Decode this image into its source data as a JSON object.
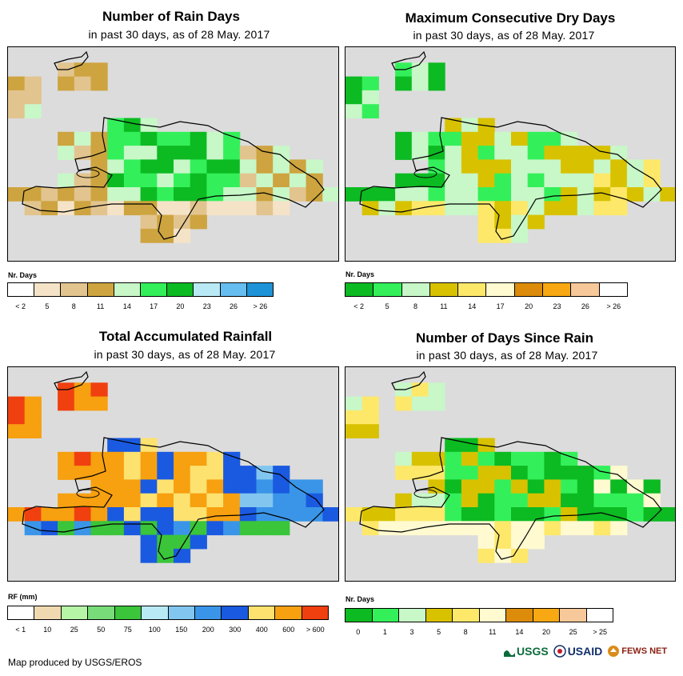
{
  "panels": [
    {
      "title": "Number of Rain Days",
      "subtitle": "in past 30 days, as of 28 May. 2017",
      "legend_title": "Nr. Days",
      "legend_colors": [
        "#ffffff",
        "#f5e3c7",
        "#e2c48f",
        "#cda43f",
        "#c8f7c8",
        "#33f05a",
        "#0cba22",
        "#b8e9f5",
        "#66bdf0",
        "#1e93d8"
      ],
      "legend_labels": [
        "< 2",
        "5",
        "8",
        "11",
        "14",
        "17",
        "20",
        "23",
        "26",
        "> 26"
      ],
      "grid_color_idx": [
        1,
        2,
        3,
        4,
        5,
        6
      ]
    },
    {
      "title": "Maximum Consecutive Dry Days",
      "subtitle": "in past 30 days, as of 28 May. 2017",
      "legend_title": "Nr. Days",
      "legend_colors": [
        "#0cba22",
        "#33f05a",
        "#c8f7c8",
        "#d8c200",
        "#fde86a",
        "#fffad0",
        "#dc8c0a",
        "#f7a812",
        "#f7c89a",
        "#ffffff"
      ],
      "legend_labels": [
        "< 2",
        "5",
        "8",
        "11",
        "14",
        "17",
        "20",
        "23",
        "26",
        "> 26"
      ]
    },
    {
      "title": "Total Accumulated Rainfall",
      "subtitle": "in past 30 days, as of 28 May. 2017",
      "legend_title": "RF (mm)",
      "legend_colors": [
        "#ffffff",
        "#f0d9b0",
        "#b6f5a6",
        "#78dc78",
        "#3ac53a",
        "#b8e9f5",
        "#82c6f0",
        "#3a95e8",
        "#1a5ae0",
        "#fde270",
        "#f7a010",
        "#f04010"
      ],
      "legend_labels": [
        "< 1",
        "10",
        "25",
        "50",
        "75",
        "100",
        "150",
        "200",
        "300",
        "400",
        "600",
        "> 600"
      ]
    },
    {
      "title": "Number of Days Since Rain",
      "subtitle": "in past 30 days, as of 28 May. 2017",
      "legend_title": "Nr. Days",
      "legend_colors": [
        "#0cba22",
        "#33f05a",
        "#c8f7c8",
        "#d8c200",
        "#fde86a",
        "#fffad0",
        "#dc8c0a",
        "#f7a812",
        "#f7c89a",
        "#ffffff"
      ],
      "legend_labels": [
        "0",
        "1",
        "3",
        "5",
        "8",
        "11",
        "14",
        "20",
        "25",
        "> 25"
      ]
    }
  ],
  "footer": "Map produced by USGS/EROS",
  "logos": [
    "USGS",
    "USAID",
    "FEWS NET"
  ]
}
